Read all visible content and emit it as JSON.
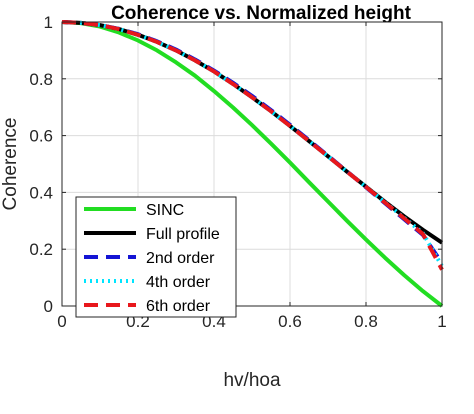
{
  "chart_data": {
    "type": "line",
    "title": "Coherence vs. Normalized height",
    "xlabel": "hv/hoa",
    "ylabel": "Coherence",
    "xlim": [
      0,
      1
    ],
    "ylim": [
      0,
      1
    ],
    "xticks": [
      0,
      0.2,
      0.4,
      0.6,
      0.8,
      1
    ],
    "xtick_labels": [
      "0",
      "0.2",
      "0.4",
      "0.6",
      "0.8",
      "1"
    ],
    "yticks": [
      0,
      0.2,
      0.4,
      0.6,
      0.8,
      1
    ],
    "ytick_labels": [
      "0",
      "0.2",
      "0.4",
      "0.6",
      "0.8",
      "1"
    ],
    "grid": true,
    "legend_position": "bottom-left",
    "x": [
      0,
      0.05,
      0.1,
      0.15,
      0.2,
      0.25,
      0.3,
      0.35,
      0.4,
      0.45,
      0.5,
      0.55,
      0.6,
      0.65,
      0.7,
      0.75,
      0.8,
      0.85,
      0.9,
      0.95,
      1
    ],
    "series": [
      {
        "name": "SINC",
        "color": "#22dd22",
        "style": "solid",
        "values": [
          1.0,
          0.996,
          0.984,
          0.963,
          0.935,
          0.9,
          0.858,
          0.811,
          0.757,
          0.699,
          0.637,
          0.572,
          0.505,
          0.436,
          0.368,
          0.3,
          0.234,
          0.17,
          0.109,
          0.052,
          0.0
        ]
      },
      {
        "name": "Full profile",
        "color": "#000000",
        "style": "solid",
        "values": [
          1.0,
          0.997,
          0.989,
          0.975,
          0.955,
          0.93,
          0.9,
          0.865,
          0.826,
          0.782,
          0.735,
          0.686,
          0.634,
          0.581,
          0.527,
          0.473,
          0.42,
          0.367,
          0.316,
          0.268,
          0.223
        ]
      },
      {
        "name": "2nd order",
        "color": "#1414d4",
        "style": "dashed",
        "values": [
          1.0,
          0.997,
          0.989,
          0.976,
          0.957,
          0.932,
          0.903,
          0.868,
          0.829,
          0.786,
          0.74,
          0.69,
          0.638,
          0.584,
          0.529,
          0.474,
          0.418,
          0.362,
          0.306,
          0.25,
          0.151
        ]
      },
      {
        "name": "4th order",
        "color": "#00e5ff",
        "style": "dotted",
        "values": [
          1.0,
          0.997,
          0.989,
          0.975,
          0.955,
          0.93,
          0.9,
          0.865,
          0.826,
          0.782,
          0.735,
          0.686,
          0.634,
          0.581,
          0.527,
          0.473,
          0.419,
          0.365,
          0.311,
          0.256,
          0.14
        ]
      },
      {
        "name": "6th order",
        "color": "#e8171c",
        "style": "dashed",
        "values": [
          1.0,
          0.997,
          0.989,
          0.975,
          0.955,
          0.93,
          0.9,
          0.865,
          0.826,
          0.782,
          0.735,
          0.686,
          0.634,
          0.581,
          0.527,
          0.473,
          0.419,
          0.364,
          0.309,
          0.253,
          0.128
        ]
      }
    ]
  }
}
